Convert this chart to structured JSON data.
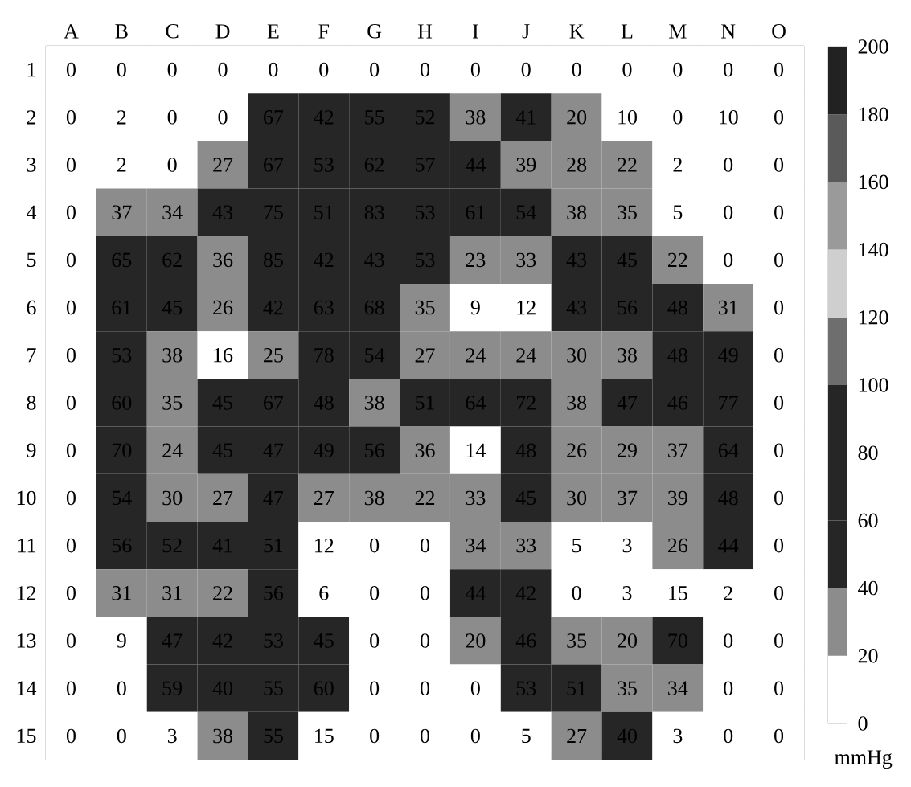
{
  "chart_data": {
    "type": "heatmap",
    "categories": [
      "A",
      "B",
      "C",
      "D",
      "E",
      "F",
      "G",
      "H",
      "I",
      "J",
      "K",
      "L",
      "M",
      "N",
      "O"
    ],
    "y_categories": [
      "1",
      "2",
      "3",
      "4",
      "5",
      "6",
      "7",
      "8",
      "9",
      "10",
      "11",
      "12",
      "13",
      "14",
      "15"
    ],
    "cells": [
      [
        0,
        0,
        0,
        0,
        0,
        0,
        0,
        0,
        0,
        0,
        0,
        0,
        0,
        0,
        0
      ],
      [
        0,
        2,
        0,
        0,
        67,
        42,
        55,
        52,
        38,
        41,
        20,
        10,
        0,
        10,
        0
      ],
      [
        0,
        2,
        0,
        27,
        67,
        53,
        62,
        57,
        44,
        39,
        28,
        22,
        2,
        0,
        0
      ],
      [
        0,
        37,
        34,
        43,
        75,
        51,
        83,
        53,
        61,
        54,
        38,
        35,
        5,
        0,
        0
      ],
      [
        0,
        65,
        62,
        36,
        85,
        42,
        43,
        53,
        23,
        33,
        43,
        45,
        22,
        0,
        0
      ],
      [
        0,
        61,
        45,
        26,
        42,
        63,
        68,
        35,
        9,
        12,
        43,
        56,
        48,
        31,
        0
      ],
      [
        0,
        53,
        38,
        16,
        25,
        78,
        54,
        27,
        24,
        24,
        30,
        38,
        48,
        49,
        0
      ],
      [
        0,
        60,
        35,
        45,
        67,
        48,
        38,
        51,
        64,
        72,
        38,
        47,
        46,
        77,
        0
      ],
      [
        0,
        70,
        24,
        45,
        47,
        49,
        56,
        36,
        14,
        48,
        26,
        29,
        37,
        64,
        0
      ],
      [
        0,
        54,
        30,
        27,
        47,
        27,
        38,
        22,
        33,
        45,
        30,
        37,
        39,
        48,
        0
      ],
      [
        0,
        56,
        52,
        41,
        51,
        12,
        0,
        0,
        34,
        33,
        5,
        3,
        26,
        44,
        0
      ],
      [
        0,
        31,
        31,
        22,
        56,
        6,
        0,
        0,
        44,
        42,
        0,
        3,
        15,
        2,
        0
      ],
      [
        0,
        9,
        47,
        42,
        53,
        45,
        0,
        0,
        20,
        46,
        35,
        20,
        70,
        0,
        0
      ],
      [
        0,
        0,
        59,
        40,
        55,
        60,
        0,
        0,
        0,
        53,
        51,
        35,
        34,
        0,
        0
      ],
      [
        0,
        0,
        3,
        38,
        55,
        15,
        0,
        0,
        0,
        5,
        27,
        40,
        3,
        0,
        0
      ]
    ],
    "data_labels": true,
    "clim": [
      0,
      200
    ],
    "cticks": [
      0,
      20,
      40,
      60,
      80,
      100,
      120,
      140,
      160,
      180,
      200
    ],
    "clabel": "mmHg"
  }
}
